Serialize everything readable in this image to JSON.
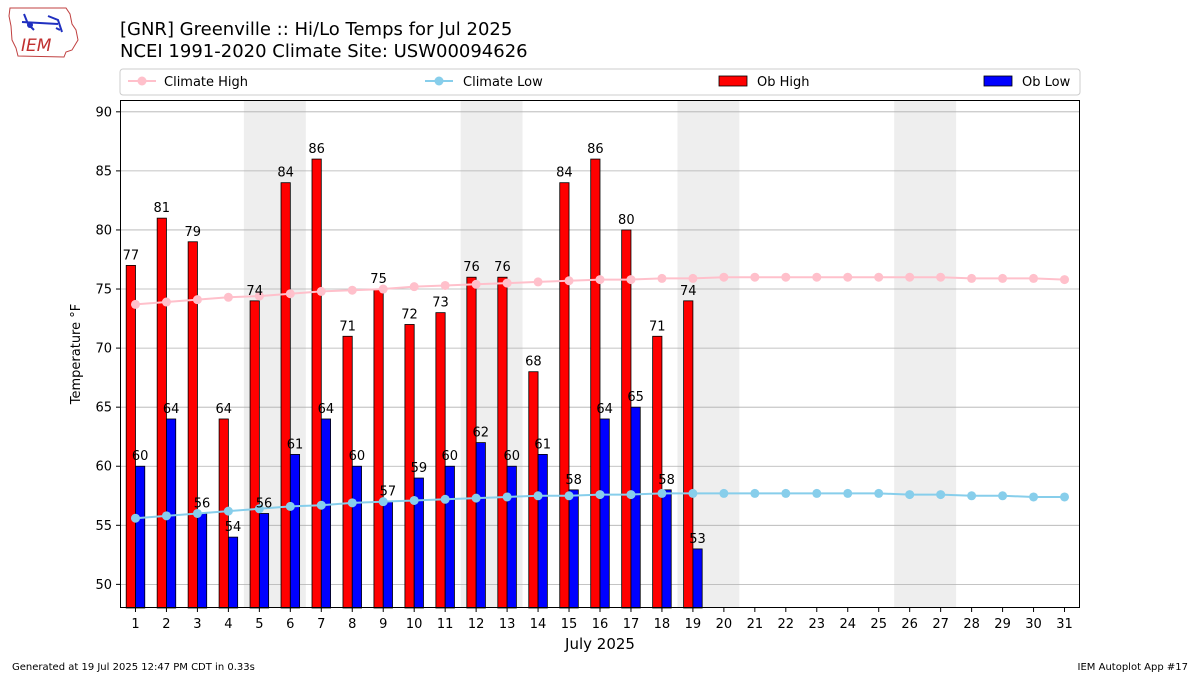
{
  "logo": {
    "text": "IEM"
  },
  "header": {
    "title_line1": "[GNR] Greenville :: Hi/Lo Temps for Jul 2025",
    "title_line2": "NCEI 1991-2020 Climate Site: USW00094626"
  },
  "footer": {
    "left": "Generated at 19 Jul 2025 12:47 PM CDT in 0.33s",
    "right": "IEM Autoplot App #17"
  },
  "chart_data": {
    "type": "bar",
    "xlabel": "July 2025",
    "ylabel": "Temperature °F",
    "xlim": [
      0.5,
      31.5
    ],
    "ylim": [
      48,
      91
    ],
    "yticks": [
      50,
      55,
      60,
      65,
      70,
      75,
      80,
      85,
      90
    ],
    "grid": "horizontal",
    "legend_placement": "top",
    "weekend_shading": [
      [
        5,
        6
      ],
      [
        12,
        13
      ],
      [
        19,
        20
      ],
      [
        26,
        27
      ]
    ],
    "days": [
      1,
      2,
      3,
      4,
      5,
      6,
      7,
      8,
      9,
      10,
      11,
      12,
      13,
      14,
      15,
      16,
      17,
      18,
      19,
      20,
      21,
      22,
      23,
      24,
      25,
      26,
      27,
      28,
      29,
      30,
      31
    ],
    "series": [
      {
        "name": "Climate High",
        "kind": "line",
        "color": "#ffc0cb",
        "values": [
          73.7,
          73.9,
          74.1,
          74.3,
          74.4,
          74.6,
          74.8,
          74.9,
          75.0,
          75.2,
          75.3,
          75.4,
          75.5,
          75.6,
          75.7,
          75.8,
          75.8,
          75.9,
          75.9,
          76.0,
          76.0,
          76.0,
          76.0,
          76.0,
          76.0,
          76.0,
          76.0,
          75.9,
          75.9,
          75.9,
          75.8
        ]
      },
      {
        "name": "Climate Low",
        "kind": "line",
        "color": "#87ceeb",
        "values": [
          55.6,
          55.8,
          56.0,
          56.2,
          56.4,
          56.6,
          56.7,
          56.9,
          57.0,
          57.1,
          57.2,
          57.3,
          57.4,
          57.5,
          57.5,
          57.6,
          57.6,
          57.7,
          57.7,
          57.7,
          57.7,
          57.7,
          57.7,
          57.7,
          57.7,
          57.6,
          57.6,
          57.5,
          57.5,
          57.4,
          57.4
        ]
      },
      {
        "name": "Ob High",
        "kind": "bar",
        "color": "#ff0000",
        "values": [
          77,
          81,
          79,
          64,
          74,
          84,
          86,
          71,
          75,
          72,
          73,
          76,
          76,
          68,
          84,
          86,
          80,
          71,
          74
        ]
      },
      {
        "name": "Ob Low",
        "kind": "bar",
        "color": "#0000ff",
        "values": [
          60,
          64,
          56,
          54,
          56,
          61,
          64,
          60,
          57,
          59,
          60,
          62,
          60,
          61,
          58,
          64,
          65,
          58,
          53
        ]
      }
    ]
  }
}
